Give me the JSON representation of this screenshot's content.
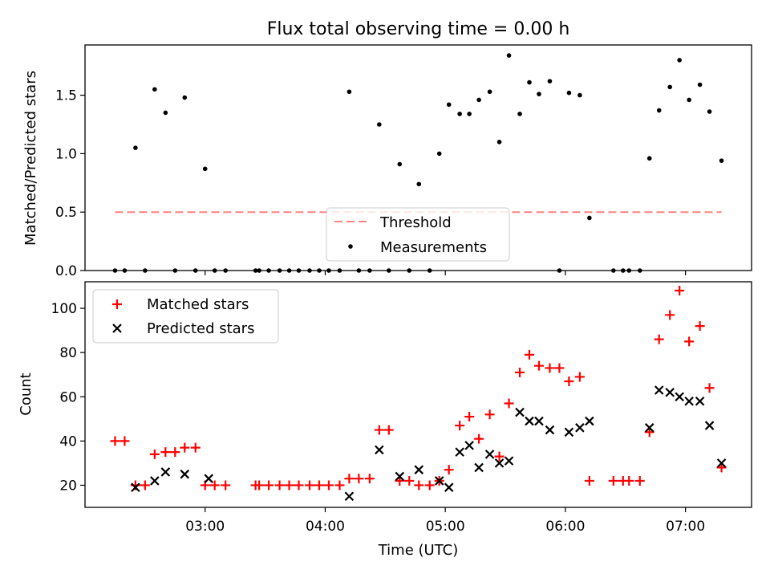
{
  "chart_data": [
    {
      "type": "scatter",
      "title": "Flux total observing time = 0.00 h",
      "xlabel": "",
      "ylabel": "Matched/Predicted stars",
      "xlim": [
        2.0,
        7.55
      ],
      "ylim": [
        0,
        1.93
      ],
      "yticks": [
        {
          "value": 0.0,
          "label": "0.0"
        },
        {
          "value": 0.5,
          "label": "0.5"
        },
        {
          "value": 1.0,
          "label": "1.0"
        },
        {
          "value": 1.5,
          "label": "1.5"
        }
      ],
      "xticks": [
        3,
        4,
        5,
        6,
        7
      ],
      "threshold": {
        "name": "Threshold",
        "value": 0.5,
        "x_start": 2.25,
        "x_end": 7.3,
        "color": "#ff8080"
      },
      "legend_position": "lower-center",
      "series": [
        {
          "name": "Measurements",
          "color": "#000000",
          "marker": "dot",
          "x": [
            2.25,
            2.33,
            2.42,
            2.5,
            2.58,
            2.67,
            2.75,
            2.83,
            2.92,
            3.0,
            3.08,
            3.17,
            3.42,
            3.45,
            3.53,
            3.62,
            3.7,
            3.78,
            3.87,
            3.95,
            4.03,
            4.12,
            4.2,
            4.28,
            4.37,
            4.45,
            4.53,
            4.62,
            4.7,
            4.78,
            4.87,
            4.95,
            5.03,
            5.12,
            5.2,
            5.28,
            5.37,
            5.45,
            5.53,
            5.62,
            5.7,
            5.78,
            5.87,
            5.95,
            6.03,
            6.12,
            6.2,
            6.4,
            6.48,
            6.53,
            6.62,
            6.7,
            6.78,
            6.87,
            6.95,
            7.03,
            7.12,
            7.2,
            7.3
          ],
          "y": [
            0,
            0,
            1.05,
            0,
            1.55,
            1.35,
            0,
            1.48,
            0,
            0.87,
            0,
            0,
            0,
            0,
            0,
            0,
            0,
            0,
            0,
            0,
            0,
            0,
            1.53,
            0,
            0,
            1.25,
            0,
            0.91,
            0,
            0.74,
            0,
            1.0,
            1.42,
            1.34,
            1.34,
            1.46,
            1.53,
            1.1,
            1.84,
            1.34,
            1.61,
            1.51,
            1.62,
            0,
            1.52,
            1.5,
            0.45,
            0,
            0,
            0,
            0,
            0.96,
            1.37,
            1.57,
            1.8,
            1.46,
            1.59,
            1.36,
            0.94
          ]
        }
      ]
    },
    {
      "type": "scatter",
      "title": "",
      "xlabel": "Time (UTC)",
      "ylabel": "Count",
      "xlim": [
        2.0,
        7.55
      ],
      "ylim": [
        10,
        112
      ],
      "yticks": [
        {
          "value": 20,
          "label": "20"
        },
        {
          "value": 40,
          "label": "40"
        },
        {
          "value": 60,
          "label": "60"
        },
        {
          "value": 80,
          "label": "80"
        },
        {
          "value": 100,
          "label": "100"
        }
      ],
      "xticks": [
        {
          "value": 3,
          "label": "03:00"
        },
        {
          "value": 4,
          "label": "04:00"
        },
        {
          "value": 5,
          "label": "05:00"
        },
        {
          "value": 6,
          "label": "06:00"
        },
        {
          "value": 7,
          "label": "07:00"
        }
      ],
      "legend_position": "upper-left",
      "series": [
        {
          "name": "Matched stars",
          "color": "#ff0000",
          "marker": "plus",
          "x": [
            2.25,
            2.33,
            2.42,
            2.5,
            2.58,
            2.67,
            2.75,
            2.83,
            2.92,
            3.0,
            3.08,
            3.17,
            3.42,
            3.45,
            3.53,
            3.62,
            3.7,
            3.78,
            3.87,
            3.95,
            4.03,
            4.12,
            4.2,
            4.28,
            4.37,
            4.45,
            4.53,
            4.62,
            4.7,
            4.78,
            4.87,
            4.95,
            5.03,
            5.12,
            5.2,
            5.28,
            5.37,
            5.45,
            5.53,
            5.62,
            5.7,
            5.78,
            5.87,
            5.95,
            6.03,
            6.12,
            6.2,
            6.4,
            6.48,
            6.53,
            6.62,
            6.7,
            6.78,
            6.87,
            6.95,
            7.03,
            7.12,
            7.2,
            7.3
          ],
          "y": [
            40,
            40,
            20,
            20,
            34,
            35,
            35,
            37,
            37,
            20,
            20,
            20,
            20,
            20,
            20,
            20,
            20,
            20,
            20,
            20,
            20,
            20,
            23,
            23,
            23,
            45,
            45,
            22,
            22,
            20,
            20,
            22,
            27,
            47,
            51,
            41,
            52,
            33,
            57,
            71,
            79,
            74,
            73,
            73,
            67,
            69,
            22,
            22,
            22,
            22,
            22,
            44,
            86,
            97,
            108,
            85,
            92,
            64,
            28
          ]
        },
        {
          "name": "Predicted stars",
          "color": "#000000",
          "marker": "x",
          "x": [
            2.42,
            2.58,
            2.67,
            2.83,
            3.03,
            4.2,
            4.45,
            4.62,
            4.78,
            4.95,
            5.03,
            5.12,
            5.2,
            5.28,
            5.37,
            5.45,
            5.53,
            5.62,
            5.7,
            5.78,
            5.87,
            6.03,
            6.12,
            6.2,
            6.7,
            6.78,
            6.87,
            6.95,
            7.03,
            7.12,
            7.2,
            7.3
          ],
          "y": [
            19,
            22,
            26,
            25,
            23,
            15,
            36,
            24,
            27,
            22,
            19,
            35,
            38,
            28,
            34,
            30,
            31,
            53,
            49,
            49,
            45,
            44,
            46,
            49,
            46,
            63,
            62,
            60,
            58,
            58,
            47,
            30
          ]
        }
      ]
    }
  ]
}
